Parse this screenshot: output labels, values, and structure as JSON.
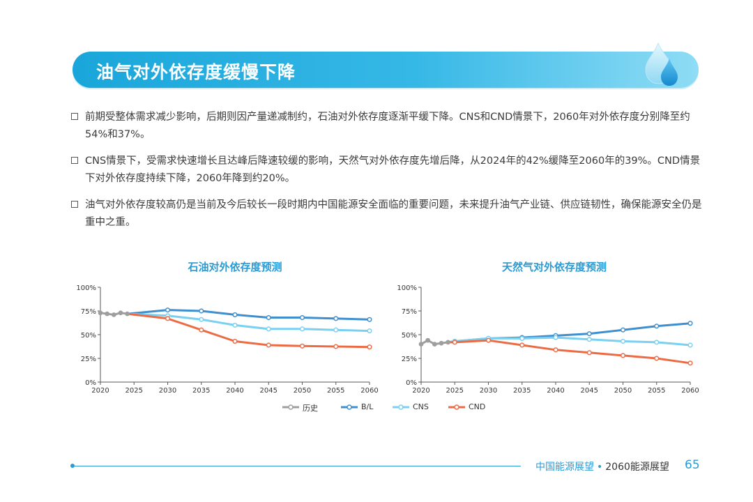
{
  "header": {
    "title": "油气对外依存度缓慢下降"
  },
  "bullets": [
    "前期受整体需求减少影响，后期则因产量递减制约，石油对外依存度逐渐平缓下降。CNS和CND情景下，2060年对外依存度分别降至约54%和37%。",
    "CNS情景下，受需求快速增长且达峰后降速较缓的影响，天然气对外依存度先增后降，从2024年的42%缓降至2060年的39%。CND情景下对外依存度持续下降，2060年降到约20%。",
    "油气对外依存度较高仍是当前及今后较长一段时期内中国能源安全面临的重要问题，未来提升油气产业链、供应链韧性，确保能源安全仍是重中之重。"
  ],
  "colors": {
    "history": "#9e9e9e",
    "bl": "#3f8fcf",
    "cns": "#79d0f0",
    "cnd": "#ec6b45",
    "accent": "#2a9bd3"
  },
  "chart_data": [
    {
      "type": "line",
      "title": "石油对外依存度预测",
      "ylim": [
        0,
        100
      ],
      "yticks": [
        0,
        25,
        50,
        75,
        100
      ],
      "ytick_labels": [
        "0%",
        "25%",
        "50%",
        "75%",
        "100%"
      ],
      "xlim": [
        2020,
        2060
      ],
      "xticks": [
        2020,
        2025,
        2030,
        2035,
        2040,
        2045,
        2050,
        2055,
        2060
      ],
      "series": [
        {
          "name": "历史",
          "x": [
            2020,
            2021,
            2022,
            2023,
            2024
          ],
          "y": [
            73,
            72,
            71,
            73,
            72
          ]
        },
        {
          "name": "B/L",
          "x": [
            2024,
            2030,
            2035,
            2040,
            2045,
            2050,
            2055,
            2060
          ],
          "y": [
            72,
            76,
            75,
            71,
            68,
            68,
            67,
            66
          ]
        },
        {
          "name": "CNS",
          "x": [
            2024,
            2030,
            2035,
            2040,
            2045,
            2050,
            2055,
            2060
          ],
          "y": [
            72,
            70,
            66,
            60,
            56,
            56,
            55,
            54
          ]
        },
        {
          "name": "CND",
          "x": [
            2024,
            2030,
            2035,
            2040,
            2045,
            2050,
            2055,
            2060
          ],
          "y": [
            72,
            67,
            55,
            43,
            39,
            38,
            37.5,
            37
          ]
        }
      ]
    },
    {
      "type": "line",
      "title": "天然气对外依存度预测",
      "ylim": [
        0,
        100
      ],
      "yticks": [
        0,
        25,
        50,
        75,
        100
      ],
      "ytick_labels": [
        "0%",
        "25%",
        "50%",
        "75%",
        "100%"
      ],
      "xlim": [
        2020,
        2060
      ],
      "xticks": [
        2020,
        2025,
        2030,
        2035,
        2040,
        2045,
        2050,
        2055,
        2060
      ],
      "series": [
        {
          "name": "历史",
          "x": [
            2020,
            2021,
            2022,
            2023,
            2024
          ],
          "y": [
            40,
            44,
            40,
            41,
            42
          ]
        },
        {
          "name": "B/L",
          "x": [
            2024,
            2025,
            2030,
            2035,
            2040,
            2045,
            2050,
            2055,
            2060
          ],
          "y": [
            42,
            43,
            46,
            47,
            49,
            51,
            55,
            59,
            62
          ]
        },
        {
          "name": "CNS",
          "x": [
            2024,
            2025,
            2030,
            2035,
            2040,
            2045,
            2050,
            2055,
            2060
          ],
          "y": [
            42,
            43,
            46,
            46,
            47,
            45,
            43,
            42,
            39
          ]
        },
        {
          "name": "CND",
          "x": [
            2024,
            2025,
            2030,
            2035,
            2040,
            2045,
            2050,
            2055,
            2060
          ],
          "y": [
            42,
            42,
            44,
            39,
            34,
            31,
            28,
            25,
            20
          ]
        }
      ]
    }
  ],
  "legend": [
    "历史",
    "B/L",
    "CNS",
    "CND"
  ],
  "footer": {
    "left": "中国能源展望",
    "sep": "•",
    "right": "2060能源展望",
    "page": "65"
  }
}
